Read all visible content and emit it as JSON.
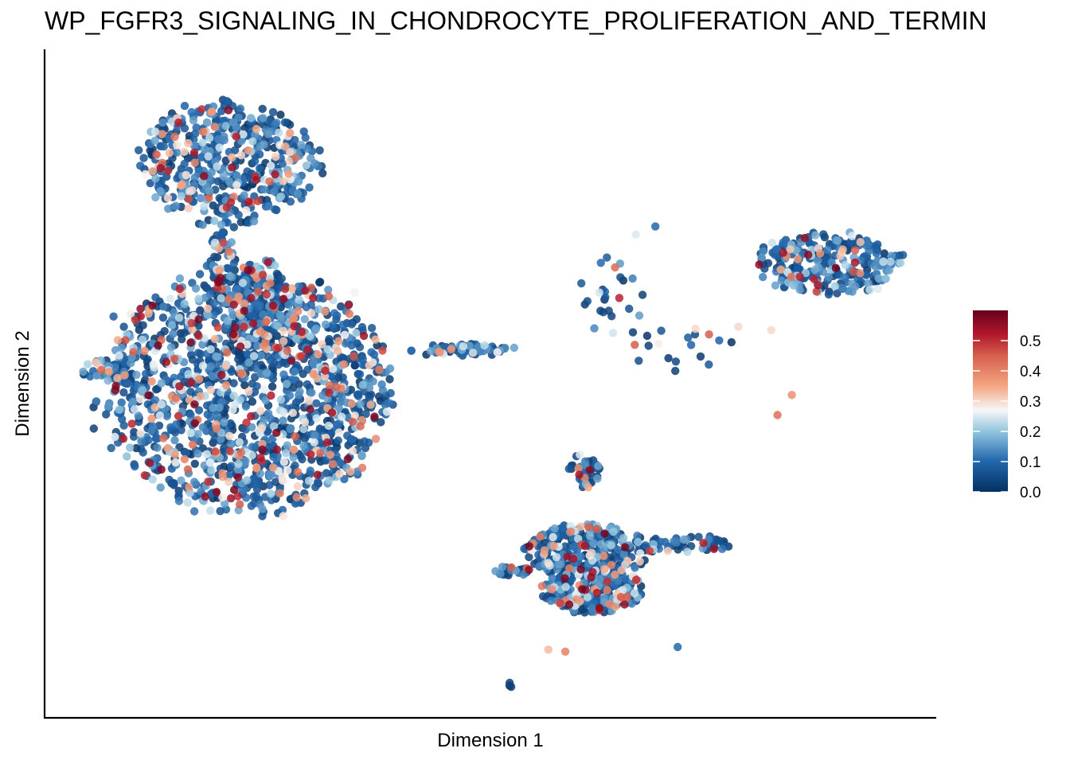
{
  "chart_data": {
    "type": "scatter",
    "title": "WP_FGFR3_SIGNALING_IN_CHONDROCYTE_PROLIFERATION_AND_TERMIN",
    "xlabel": "Dimension 1",
    "ylabel": "Dimension 2",
    "x_ticks_shown": false,
    "y_ticks_shown": false,
    "grid": false,
    "xlim": [
      0,
      100
    ],
    "ylim": [
      0,
      100
    ],
    "color_scale": {
      "name": "RdBu reversed",
      "min": 0.0,
      "max": 0.6,
      "stops": [
        {
          "value": 0.0,
          "color": "#053061"
        },
        {
          "value": 0.1,
          "color": "#2166ac"
        },
        {
          "value": 0.2,
          "color": "#92c5de"
        },
        {
          "value": 0.27,
          "color": "#f7f7f7"
        },
        {
          "value": 0.35,
          "color": "#f4a582"
        },
        {
          "value": 0.45,
          "color": "#d6604d"
        },
        {
          "value": 0.52,
          "color": "#b2182b"
        },
        {
          "value": 0.6,
          "color": "#67001f"
        }
      ],
      "ticks": [
        {
          "value": 0.0,
          "label": "0.0"
        },
        {
          "value": 0.1,
          "label": "0.1"
        },
        {
          "value": 0.2,
          "label": "0.2"
        },
        {
          "value": 0.3,
          "label": "0.3"
        },
        {
          "value": 0.4,
          "label": "0.4"
        },
        {
          "value": 0.5,
          "label": "0.5"
        }
      ],
      "legend_position": "right"
    },
    "clusters": [
      {
        "cx": 20.5,
        "cy": 83,
        "rx": 10,
        "ry": 9,
        "n": 520
      },
      {
        "cx": 20.0,
        "cy": 69,
        "rx": 1.6,
        "ry": 4,
        "n": 40
      },
      {
        "cx": 22.5,
        "cy": 49,
        "rx": 16,
        "ry": 18,
        "n": 1500
      },
      {
        "cx": 24.5,
        "cy": 60,
        "rx": 4,
        "ry": 9,
        "n": 160
      },
      {
        "cx": 47.0,
        "cy": 55,
        "rx": 6,
        "ry": 0.9,
        "n": 60
      },
      {
        "cx": 6.5,
        "cy": 52,
        "rx": 2.6,
        "ry": 1.6,
        "n": 30
      },
      {
        "cx": 88.0,
        "cy": 68,
        "rx": 8.5,
        "ry": 4.5,
        "n": 260
      },
      {
        "cx": 60.5,
        "cy": 37,
        "rx": 1.6,
        "ry": 2.6,
        "n": 40
      },
      {
        "cx": 61.5,
        "cy": 19,
        "rx": 5.5,
        "ry": 3.5,
        "n": 260
      },
      {
        "cx": 61.0,
        "cy": 25,
        "rx": 7,
        "ry": 4,
        "n": 300
      },
      {
        "cx": 52.5,
        "cy": 22,
        "rx": 2.2,
        "ry": 0.7,
        "n": 25
      },
      {
        "cx": 72.0,
        "cy": 26,
        "rx": 5,
        "ry": 1.2,
        "n": 50
      },
      {
        "cx": 63.5,
        "cy": 63,
        "rx": 4,
        "ry": 6,
        "n": 25
      },
      {
        "cx": 70.5,
        "cy": 55,
        "rx": 8,
        "ry": 4,
        "n": 18
      },
      {
        "cx": 52.5,
        "cy": 5,
        "rx": 0.5,
        "ry": 0.5,
        "n": 3
      }
    ],
    "outliers": [
      {
        "x": 68.5,
        "y": 73.5,
        "v": 0.1
      },
      {
        "x": 66.3,
        "y": 72.3,
        "v": 0.25
      },
      {
        "x": 83.8,
        "y": 48.3,
        "v": 0.38
      },
      {
        "x": 82.2,
        "y": 45.3,
        "v": 0.43
      },
      {
        "x": 71.0,
        "y": 10.6,
        "v": 0.1
      },
      {
        "x": 58.4,
        "y": 9.9,
        "v": 0.4
      },
      {
        "x": 56.5,
        "y": 10.2,
        "v": 0.33
      },
      {
        "x": 77.8,
        "y": 58.5,
        "v": 0.3
      },
      {
        "x": 81.5,
        "y": 58.0,
        "v": 0.3
      },
      {
        "x": 73.0,
        "y": 58.2,
        "v": 0.3
      }
    ]
  }
}
